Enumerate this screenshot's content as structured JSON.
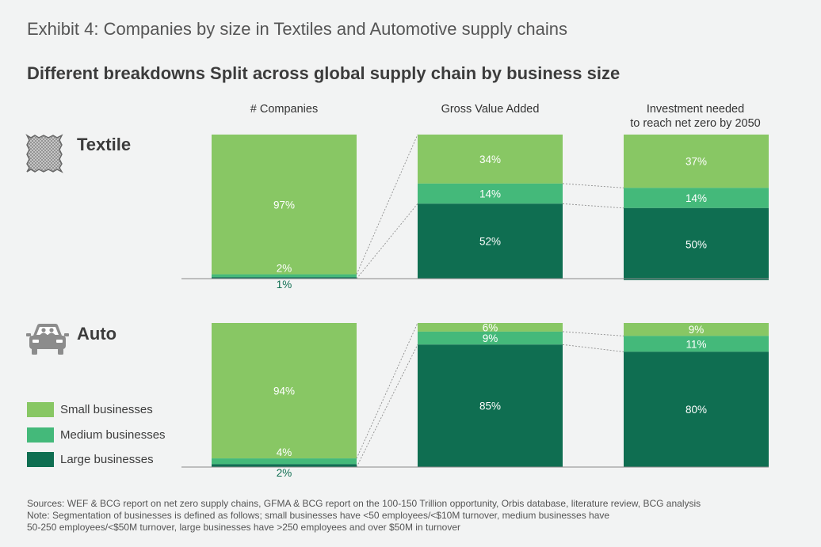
{
  "header": {
    "exhibit": "Exhibit 4: Companies by size in Textiles and Automotive supply chains",
    "subtitle": "Different breakdowns Split across global supply chain by business size"
  },
  "columns": [
    "# Companies",
    "Gross Value Added",
    "Investment needed to reach net zero by 2050"
  ],
  "rows": [
    {
      "label": "Textile",
      "icon": "textile-fabric-icon"
    },
    {
      "label": "Auto",
      "icon": "car-icon"
    }
  ],
  "legend": [
    {
      "label": "Small businesses",
      "color": "#88c764"
    },
    {
      "label": "Medium businesses",
      "color": "#44b97a"
    },
    {
      "label": "Large businesses",
      "color": "#0f6e51"
    }
  ],
  "chart_data": [
    {
      "type": "bar",
      "group": "Textile",
      "categories": [
        "# Companies",
        "Gross Value Added",
        "Investment needed to reach net zero by 2050"
      ],
      "series": [
        {
          "name": "Small businesses",
          "values": [
            97,
            34,
            37
          ]
        },
        {
          "name": "Medium businesses",
          "values": [
            2,
            14,
            14
          ]
        },
        {
          "name": "Large businesses",
          "values": [
            1,
            52,
            50
          ]
        }
      ],
      "value_labels": [
        [
          "97%",
          "2%",
          "1%"
        ],
        [
          "34%",
          "14%",
          "52%"
        ],
        [
          "37%",
          "14%",
          "50%"
        ]
      ],
      "stacked": true,
      "ylim": [
        0,
        100
      ]
    },
    {
      "type": "bar",
      "group": "Auto",
      "categories": [
        "# Companies",
        "Gross Value Added",
        "Investment needed to reach net zero by 2050"
      ],
      "series": [
        {
          "name": "Small businesses",
          "values": [
            94,
            6,
            9
          ]
        },
        {
          "name": "Medium businesses",
          "values": [
            4,
            9,
            11
          ]
        },
        {
          "name": "Large businesses",
          "values": [
            2,
            85,
            80
          ]
        }
      ],
      "value_labels": [
        [
          "94%",
          "4%",
          "2%"
        ],
        [
          "6%",
          "9%",
          "85%"
        ],
        [
          "9%",
          "11%",
          "80%"
        ]
      ],
      "stacked": true,
      "ylim": [
        0,
        100
      ]
    }
  ],
  "footer": {
    "sources": "Sources: WEF & BCG report on net zero supply chains, GFMA & BCG report on the 100-150 Trillion opportunity, Orbis database, literature review, BCG analysis",
    "note_line1": "Note: Segmentation of businesses is defined as follows; small businesses have <50 employees/<$10M turnover, medium businesses have",
    "note_line2": "50-250 employees/<$50M turnover, large businesses have >250 employees and over $50M in turnover"
  }
}
